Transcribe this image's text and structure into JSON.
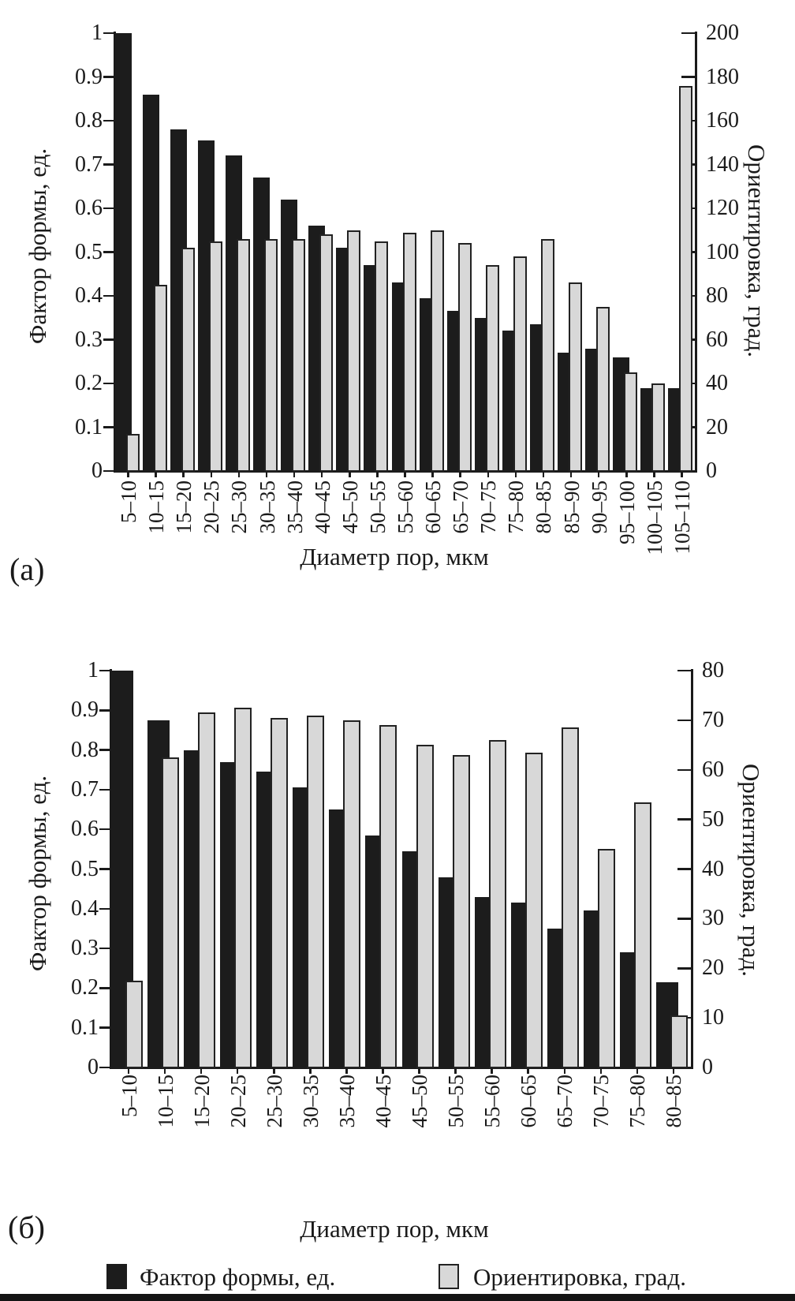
{
  "figure": {
    "panel_a_label": "(а)",
    "panel_b_label": "(б)"
  },
  "legend": {
    "form_factor_label": "Фактор формы, ед.",
    "orientation_label": "Ориентировка, град."
  },
  "colors": {
    "form_factor": "#1c1c1c",
    "orientation": "#d8d8d8",
    "axis": "#1a1a1a"
  },
  "chart_data": [
    {
      "id": "a",
      "type": "bar",
      "panel_label": "(а)",
      "title": "",
      "xlabel": "Диаметр пор, мкм",
      "ylabel_left": "Фактор формы, ед.",
      "ylabel_right": "Ориентировка, град.",
      "ylim_left": [
        0,
        1
      ],
      "ylim_right": [
        0,
        200
      ],
      "yticks_left": [
        "0",
        "0.1",
        "0.2",
        "0.3",
        "0.4",
        "0.5",
        "0.6",
        "0.7",
        "0.8",
        "0.9",
        "1"
      ],
      "yticks_right": [
        "0",
        "20",
        "40",
        "60",
        "80",
        "100",
        "120",
        "140",
        "160",
        "180",
        "200"
      ],
      "grid": false,
      "legend_position": "bottom",
      "categories": [
        "5–10",
        "10–15",
        "15–20",
        "20–25",
        "25–30",
        "30–35",
        "35–40",
        "40–45",
        "45–50",
        "50–55",
        "55–60",
        "60–65",
        "65–70",
        "70–75",
        "75–80",
        "80–85",
        "85–90",
        "90–95",
        "95–100",
        "100–105",
        "105–110"
      ],
      "series": [
        {
          "name": "Фактор формы, ед.",
          "axis": "left",
          "values": [
            1.0,
            0.86,
            0.78,
            0.755,
            0.72,
            0.67,
            0.62,
            0.56,
            0.51,
            0.47,
            0.43,
            0.395,
            0.365,
            0.35,
            0.32,
            0.335,
            0.27,
            0.28,
            0.26,
            0.19,
            0.19
          ]
        },
        {
          "name": "Ориентировка, град.",
          "axis": "right",
          "values": [
            17,
            85,
            102,
            105,
            106,
            106,
            106,
            108,
            110,
            105,
            109,
            110,
            104,
            94,
            98,
            106,
            86,
            75,
            45,
            40,
            176
          ]
        }
      ]
    },
    {
      "id": "b",
      "type": "bar",
      "panel_label": "(б)",
      "title": "",
      "xlabel": "Диаметр пор, мкм",
      "ylabel_left": "Фактор формы, ед.",
      "ylabel_right": "Ориентировка, град.",
      "ylim_left": [
        0,
        1
      ],
      "ylim_right": [
        0,
        80
      ],
      "yticks_left": [
        "0",
        "0.1",
        "0.2",
        "0.3",
        "0.4",
        "0.5",
        "0.6",
        "0.7",
        "0.8",
        "0.9",
        "1"
      ],
      "yticks_right": [
        "0",
        "10",
        "20",
        "30",
        "40",
        "50",
        "60",
        "70",
        "80"
      ],
      "grid": false,
      "legend_position": "bottom",
      "categories": [
        "5–10",
        "10–15",
        "15–20",
        "20–25",
        "25–30",
        "30–35",
        "35–40",
        "40–45",
        "45–50",
        "50–55",
        "55–60",
        "60–65",
        "65–70",
        "70–75",
        "75–80",
        "80–85"
      ],
      "series": [
        {
          "name": "Фактор формы, ед.",
          "axis": "left",
          "values": [
            1.0,
            0.875,
            0.8,
            0.77,
            0.745,
            0.705,
            0.65,
            0.585,
            0.545,
            0.48,
            0.43,
            0.415,
            0.35,
            0.395,
            0.29,
            0.215
          ]
        },
        {
          "name": "Ориентировка, град.",
          "axis": "right",
          "values": [
            17.5,
            62.5,
            71.5,
            72.5,
            70.5,
            71,
            70,
            69,
            65,
            63,
            66,
            63.5,
            68.5,
            44,
            53.5,
            10.5
          ]
        }
      ]
    }
  ]
}
